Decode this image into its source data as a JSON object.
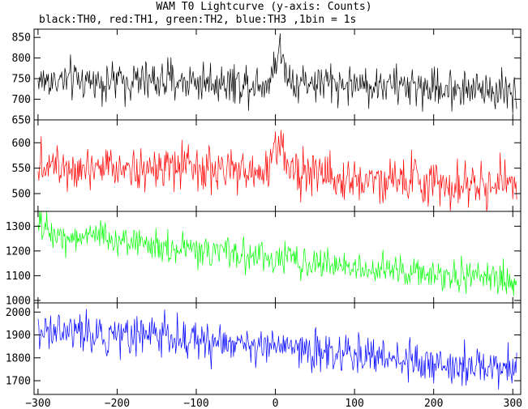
{
  "title": "WAM T0 Lightcurve (y-axis: Counts)",
  "subtitle": "black:TH0, red:TH1, green:TH2, blue:TH3 ,1bin = 1s",
  "chart_data": {
    "type": "line",
    "title": "WAM T0 Lightcurve (y-axis: Counts)",
    "subtitle": "black:TH0, red:TH1, green:TH2, blue:TH3 ,1bin = 1s",
    "x_range": [
      -305,
      310
    ],
    "x_ticks": [
      -300,
      -200,
      -100,
      0,
      100,
      200,
      300
    ],
    "x_tick_labels": [
      "−300",
      "−200",
      "−100",
      "0",
      "100",
      "200",
      "300"
    ],
    "bin_size_s": 1,
    "panels": [
      {
        "name": "TH0",
        "color": "#000000",
        "ylim": [
          650,
          870
        ],
        "y_ticks": [
          650,
          700,
          750,
          800,
          850
        ],
        "y_tick_labels": [
          "650",
          "700",
          "750",
          "800",
          "850"
        ],
        "profile_x": [
          -300,
          -250,
          -200,
          -150,
          -100,
          -50,
          -10,
          0,
          5,
          10,
          20,
          50,
          100,
          150,
          200,
          250,
          305
        ],
        "profile_y": [
          745,
          745,
          743,
          745,
          743,
          740,
          740,
          790,
          820,
          790,
          745,
          740,
          736,
          733,
          728,
          725,
          720
        ],
        "noise_sd": 24
      },
      {
        "name": "TH1",
        "color": "#ff0000",
        "ylim": [
          465,
          645
        ],
        "y_ticks": [
          500,
          550,
          600
        ],
        "y_tick_labels": [
          "500",
          "550",
          "600"
        ],
        "profile_x": [
          -300,
          -200,
          -100,
          -10,
          0,
          5,
          12,
          25,
          100,
          200,
          305
        ],
        "profile_y": [
          560,
          555,
          545,
          540,
          590,
          605,
          575,
          545,
          530,
          522,
          515
        ],
        "noise_sd": 22
      },
      {
        "name": "TH2",
        "color": "#00ff00",
        "ylim": [
          990,
          1360
        ],
        "y_ticks": [
          1000,
          1100,
          1200,
          1300
        ],
        "y_tick_labels": [
          "1000",
          "1100",
          "1200",
          "1300"
        ],
        "profile_x": [
          -300,
          -280,
          -200,
          -150,
          -100,
          0,
          100,
          200,
          305
        ],
        "profile_y": [
          1300,
          1265,
          1250,
          1220,
          1200,
          1170,
          1135,
          1105,
          1080
        ],
        "noise_sd": 32
      },
      {
        "name": "TH3",
        "color": "#0000ff",
        "ylim": [
          1640,
          2040
        ],
        "y_ticks": [
          1700,
          1800,
          1900,
          2000
        ],
        "y_tick_labels": [
          "1700",
          "1800",
          "1900",
          "2000"
        ],
        "profile_x": [
          -300,
          -200,
          -100,
          0,
          100,
          200,
          305
        ],
        "profile_y": [
          1920,
          1905,
          1880,
          1845,
          1810,
          1780,
          1750
        ],
        "noise_sd": 42
      }
    ]
  }
}
